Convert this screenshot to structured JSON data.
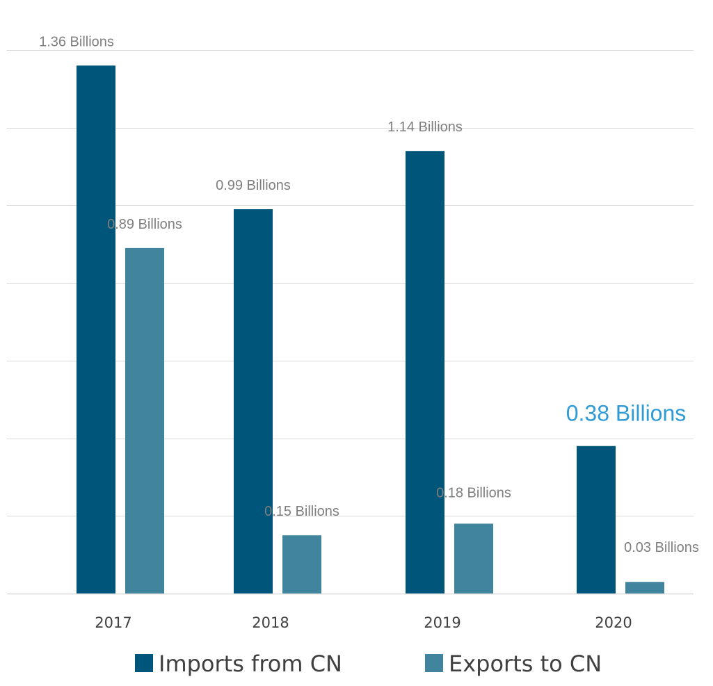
{
  "chart_data": {
    "type": "bar",
    "categories": [
      "2017",
      "2018",
      "2019",
      "2020"
    ],
    "series": [
      {
        "name": "Imports from CN",
        "values": [
          1.36,
          0.99,
          1.14,
          0.38
        ],
        "labels": [
          "1.36 Billions",
          "0.99 Billions",
          "1.14 Billions",
          "0.38 Billions"
        ]
      },
      {
        "name": "Exports to CN",
        "values": [
          0.89,
          0.15,
          0.18,
          0.03
        ],
        "labels": [
          "0.89 Billions",
          "0.15 Billions",
          "0.18 Billions",
          "0.03 Billions"
        ]
      }
    ],
    "ylim": [
      0,
      1.4
    ],
    "grid": true,
    "y_tick_step": 0.2,
    "legend_position": "bottom",
    "highlighted_label": {
      "series": 0,
      "category": 3
    },
    "colors": {
      "imports": "#00567a",
      "exports": "#41849e",
      "highlight_label": "#2e9bd6",
      "label": "#7f7f7f",
      "grid": "#d9d9d9"
    }
  }
}
